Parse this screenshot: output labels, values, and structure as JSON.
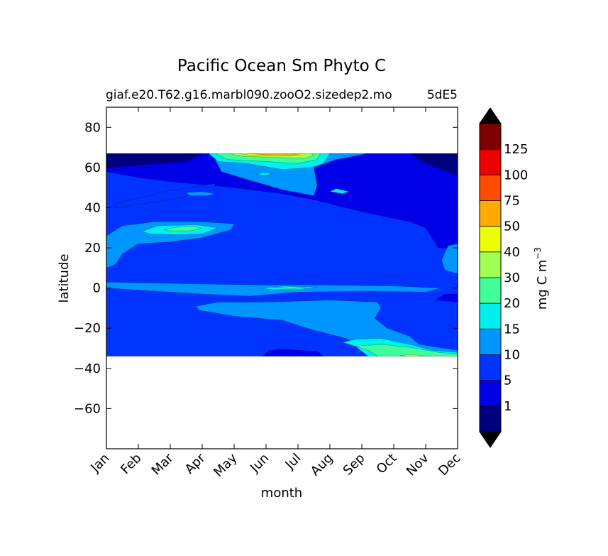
{
  "chart_data": {
    "type": "heatmap",
    "title": "Pacific Ocean Sm Phyto C",
    "subtitle_left": "giaf.e20.T62.g16.marbl090.zooO2.sizedep2.mo",
    "subtitle_right": "5dE5",
    "xlabel": "month",
    "ylabel": "latitude",
    "x_ticks": [
      "Jan",
      "Feb",
      "Mar",
      "Apr",
      "May",
      "Jun",
      "Jul",
      "Aug",
      "Sep",
      "Oct",
      "Nov",
      "Dec"
    ],
    "y_ticks": [
      80,
      60,
      40,
      20,
      0,
      -20,
      -40,
      -60
    ],
    "x_range": [
      0,
      11
    ],
    "ylim": [
      -80,
      90
    ],
    "data_lat_range": [
      -34,
      67
    ],
    "colorbar": {
      "label": "mg C m",
      "label_superscript": "−3",
      "levels": [
        0,
        1,
        5,
        10,
        15,
        20,
        30,
        40,
        50,
        75,
        100,
        125,
        150
      ],
      "tick_labels": [
        "1",
        "5",
        "10",
        "15",
        "20",
        "30",
        "40",
        "50",
        "75",
        "100",
        "125"
      ],
      "colors": [
        "#00007f",
        "#0000e8",
        "#0033ff",
        "#0096ff",
        "#00f0f0",
        "#40ff9a",
        "#a0ff52",
        "#ecff05",
        "#ffaa00",
        "#ff4c00",
        "#ec0000",
        "#7f0000"
      ],
      "extend": "both",
      "under_color": "#000000",
      "over_color": "#000000"
    },
    "background_level_range": [
      5,
      10
    ],
    "regions": [
      {
        "level_range": [
          1,
          5
        ],
        "points": [
          [
            0,
            58
          ],
          [
            0,
            67
          ],
          [
            11,
            67
          ],
          [
            11,
            20
          ],
          [
            10.4,
            20
          ],
          [
            10,
            30
          ],
          [
            9.5,
            33
          ],
          [
            8,
            38
          ],
          [
            6.5,
            44
          ],
          [
            5.5,
            47
          ],
          [
            4,
            50
          ],
          [
            2,
            53
          ],
          [
            1,
            55
          ]
        ]
      },
      {
        "level_range": [
          0,
          1
        ],
        "points": [
          [
            0,
            60
          ],
          [
            0,
            67
          ],
          [
            3,
            67
          ],
          [
            2.5,
            63
          ]
        ]
      },
      {
        "level_range": [
          0,
          1
        ],
        "points": [
          [
            9.5,
            67
          ],
          [
            11,
            67
          ],
          [
            11,
            56
          ],
          [
            10,
            62
          ]
        ]
      },
      {
        "level_range": [
          5,
          10
        ],
        "points": [
          [
            0.3,
            40
          ],
          [
            0.3,
            42
          ],
          [
            1.8,
            48
          ],
          [
            3.4,
            52
          ],
          [
            3.4,
            49
          ],
          [
            2,
            44
          ]
        ]
      },
      {
        "level_range": [
          10,
          15
        ],
        "points": [
          [
            3.3,
            67
          ],
          [
            3.6,
            58
          ],
          [
            4.2,
            55
          ],
          [
            5.5,
            49
          ],
          [
            6.5,
            46
          ],
          [
            6.6,
            51
          ],
          [
            6.5,
            60
          ],
          [
            7.2,
            64
          ],
          [
            8.2,
            67
          ]
        ]
      },
      {
        "level_range": [
          10,
          15
        ],
        "points": [
          [
            2.6,
            46
          ],
          [
            3.2,
            46
          ],
          [
            3.4,
            47
          ],
          [
            3.0,
            48
          ],
          [
            2.5,
            47.5
          ]
        ]
      },
      {
        "level_range": [
          15,
          20
        ],
        "points": [
          [
            3.2,
            67
          ],
          [
            3.5,
            63
          ],
          [
            4.4,
            62
          ],
          [
            5.5,
            59
          ],
          [
            6.4,
            60
          ],
          [
            6.8,
            62
          ],
          [
            7.0,
            67
          ]
        ]
      },
      {
        "level_range": [
          20,
          30
        ],
        "points": [
          [
            3.4,
            67
          ],
          [
            3.8,
            64
          ],
          [
            5.0,
            63
          ],
          [
            6.0,
            62
          ],
          [
            6.6,
            64
          ],
          [
            6.7,
            67
          ]
        ]
      },
      {
        "level_range": [
          30,
          40
        ],
        "points": [
          [
            3.8,
            67
          ],
          [
            4.3,
            65.5
          ],
          [
            5.3,
            65
          ],
          [
            6.2,
            64.5
          ],
          [
            6.5,
            66
          ],
          [
            6.4,
            67
          ]
        ]
      },
      {
        "level_range": [
          40,
          50
        ],
        "points": [
          [
            4.1,
            67
          ],
          [
            4.6,
            66
          ],
          [
            5.5,
            65.8
          ],
          [
            6.2,
            66.3
          ],
          [
            6.2,
            67
          ]
        ]
      },
      {
        "level_range": [
          50,
          75
        ],
        "points": [
          [
            4.4,
            67
          ],
          [
            5.0,
            66.3
          ],
          [
            5.8,
            66.2
          ],
          [
            6.2,
            67
          ]
        ]
      },
      {
        "level_range": [
          15,
          20
        ],
        "points": [
          [
            7.0,
            48
          ],
          [
            7.4,
            47
          ],
          [
            7.6,
            48
          ],
          [
            7.2,
            49.5
          ]
        ]
      },
      {
        "level_range": [
          15,
          20
        ],
        "points": [
          [
            4.7,
            56.5
          ],
          [
            5.0,
            56
          ],
          [
            5.2,
            57
          ],
          [
            4.9,
            57.5
          ]
        ]
      },
      {
        "level_range": [
          10,
          15
        ],
        "points": [
          [
            0,
            10
          ],
          [
            0,
            26
          ],
          [
            0.5,
            31
          ],
          [
            1.5,
            33
          ],
          [
            3.0,
            33
          ],
          [
            4.0,
            32
          ],
          [
            3.9,
            29
          ],
          [
            3.0,
            25
          ],
          [
            2.0,
            23
          ],
          [
            1.0,
            22
          ],
          [
            0.5,
            17
          ],
          [
            0.3,
            12
          ]
        ]
      },
      {
        "level_range": [
          15,
          20
        ],
        "points": [
          [
            1.1,
            28
          ],
          [
            1.6,
            31
          ],
          [
            2.8,
            31.5
          ],
          [
            3.5,
            30
          ],
          [
            3.0,
            27
          ],
          [
            2.2,
            26.5
          ],
          [
            1.4,
            27
          ]
        ]
      },
      {
        "level_range": [
          20,
          30
        ],
        "points": [
          [
            1.8,
            29
          ],
          [
            2.2,
            30.3
          ],
          [
            2.8,
            30.5
          ],
          [
            3.0,
            29.5
          ],
          [
            2.6,
            28.5
          ],
          [
            2.0,
            28.5
          ]
        ]
      },
      {
        "level_range": [
          10,
          15
        ],
        "points": [
          [
            10.5,
            14
          ],
          [
            10.7,
            21
          ],
          [
            11,
            22
          ],
          [
            11,
            7
          ],
          [
            10.6,
            9
          ]
        ]
      },
      {
        "level_range": [
          10,
          15
        ],
        "points": [
          [
            0,
            0
          ],
          [
            0,
            3
          ],
          [
            1.5,
            2.5
          ],
          [
            3,
            2
          ],
          [
            5,
            1.5
          ],
          [
            7,
            1.5
          ],
          [
            9,
            1
          ],
          [
            10.5,
            0
          ],
          [
            10,
            -2
          ],
          [
            8,
            -1.5
          ],
          [
            6,
            -2
          ],
          [
            4.5,
            -4
          ],
          [
            3,
            -3
          ],
          [
            1.5,
            -1.5
          ]
        ]
      },
      {
        "level_range": [
          15,
          20
        ],
        "points": [
          [
            4.8,
            0
          ],
          [
            5.6,
            1
          ],
          [
            6.6,
            0.5
          ],
          [
            6.0,
            -0.8
          ],
          [
            5.2,
            -0.8
          ]
        ]
      },
      {
        "level_range": [
          20,
          30
        ],
        "points": [
          [
            5.2,
            0.2
          ],
          [
            5.8,
            0.6
          ],
          [
            6.3,
            0.3
          ],
          [
            5.8,
            -0.3
          ]
        ]
      },
      {
        "level_range": [
          10,
          15
        ],
        "points": [
          [
            2.8,
            -9
          ],
          [
            2.9,
            -11
          ],
          [
            4,
            -14
          ],
          [
            5.5,
            -16
          ],
          [
            6.5,
            -21
          ],
          [
            7.5,
            -25
          ],
          [
            8,
            -30
          ],
          [
            8.5,
            -34
          ],
          [
            11,
            -34
          ],
          [
            11,
            -31
          ],
          [
            9.8,
            -28
          ],
          [
            9.5,
            -24
          ],
          [
            8.8,
            -20
          ],
          [
            8.4,
            -15
          ],
          [
            8.6,
            -10
          ],
          [
            8.5,
            -7
          ],
          [
            7,
            -6
          ],
          [
            5,
            -7
          ],
          [
            3.5,
            -7
          ]
        ]
      },
      {
        "level_range": [
          15,
          20
        ],
        "points": [
          [
            7.4,
            -27
          ],
          [
            7.8,
            -29
          ],
          [
            8.2,
            -34
          ],
          [
            11,
            -34
          ],
          [
            11,
            -32
          ],
          [
            10.2,
            -31
          ],
          [
            9.5,
            -28
          ],
          [
            8.6,
            -25
          ],
          [
            7.8,
            -25.5
          ]
        ]
      },
      {
        "level_range": [
          20,
          30
        ],
        "points": [
          [
            7.8,
            -29
          ],
          [
            8.2,
            -31
          ],
          [
            8.5,
            -34
          ],
          [
            11,
            -34
          ],
          [
            11,
            -33
          ],
          [
            10.4,
            -32
          ],
          [
            9.5,
            -29.5
          ],
          [
            8.6,
            -28
          ]
        ]
      },
      {
        "level_range": [
          30,
          40
        ],
        "points": [
          [
            9.2,
            -33.5
          ],
          [
            9.6,
            -33
          ],
          [
            10.0,
            -34
          ],
          [
            9.4,
            -34
          ]
        ]
      },
      {
        "level_range": [
          1,
          5
        ],
        "points": [
          [
            4.9,
            -34
          ],
          [
            5.1,
            -31
          ],
          [
            5.5,
            -30.5
          ],
          [
            6.6,
            -31.5
          ],
          [
            6.8,
            -34
          ]
        ]
      },
      {
        "level_range": [
          1,
          5
        ],
        "points": [
          [
            10.6,
            -3
          ],
          [
            11,
            -3
          ],
          [
            11,
            -7
          ],
          [
            10.3,
            -6
          ]
        ]
      }
    ]
  }
}
